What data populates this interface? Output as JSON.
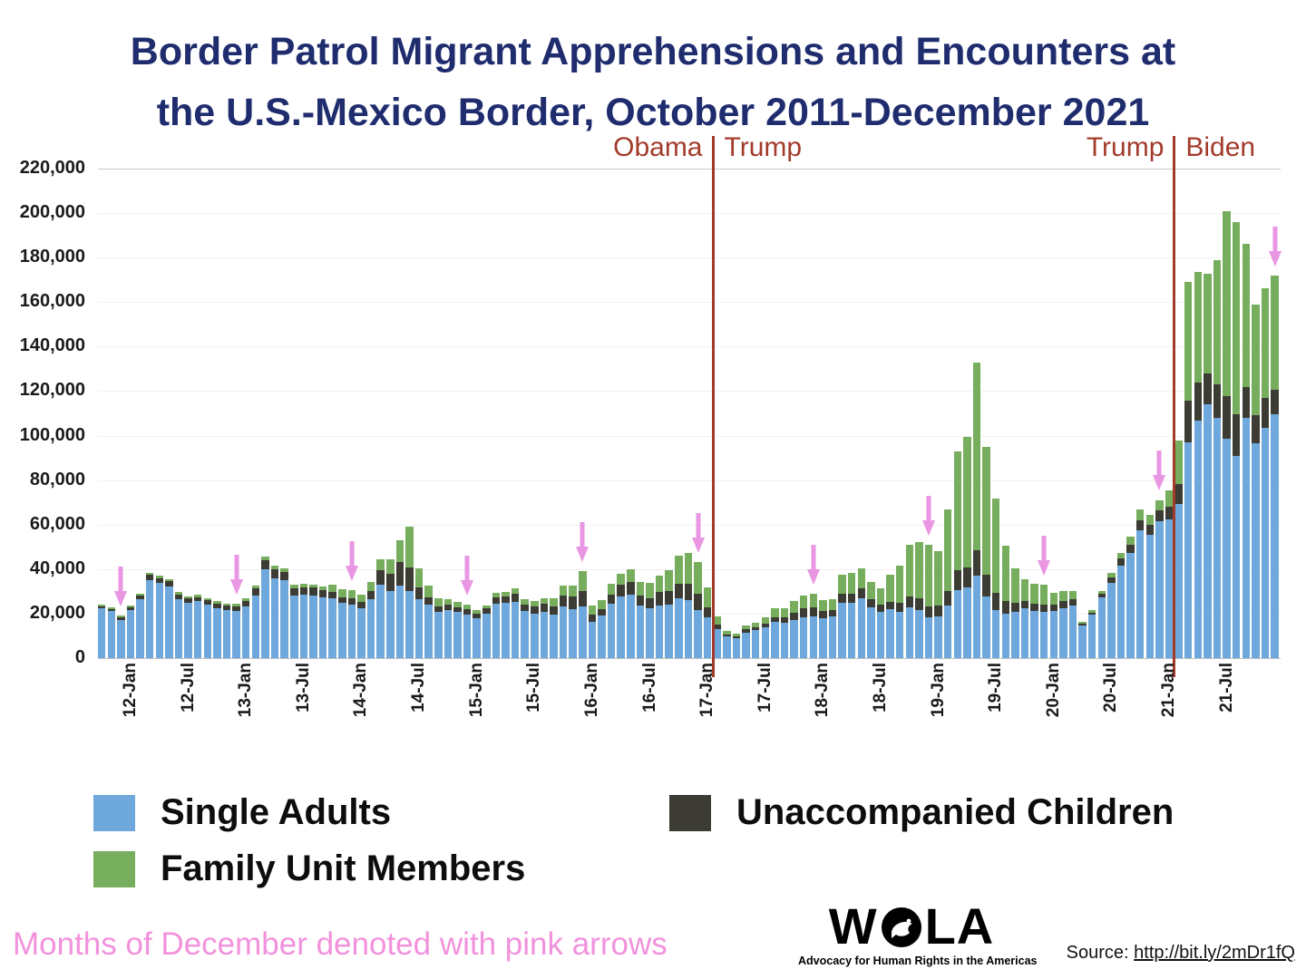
{
  "title": {
    "line1": "Border Patrol Migrant Apprehensions and Encounters at",
    "line2": "the U.S.-Mexico Border, October 2011-December 2021"
  },
  "colors": {
    "title": "#1f2c6e",
    "single": "#6fa8dc",
    "uac": "#3c3c34",
    "family": "#76ae5e",
    "transition": "#a23b2a",
    "arrow": "#e78be0",
    "pink_note": "#f291dc"
  },
  "chart_data": {
    "type": "bar",
    "stacked": true,
    "title": "Border Patrol Migrant Apprehensions and Encounters at the U.S.-Mexico Border, October 2011-December 2021",
    "xlabel": "",
    "ylabel": "",
    "ylim": [
      0,
      220000
    ],
    "ytick_step": 20000,
    "ytick_labels": [
      "220,000",
      "200,000",
      "180,000",
      "160,000",
      "140,000",
      "120,000",
      "100,000",
      "80,000",
      "60,000",
      "40,000",
      "20,000",
      "0"
    ],
    "grid": "minimal",
    "legend_position": "bottom",
    "months": [
      "2011-10",
      "2011-11",
      "2011-12",
      "2012-01",
      "2012-02",
      "2012-03",
      "2012-04",
      "2012-05",
      "2012-06",
      "2012-07",
      "2012-08",
      "2012-09",
      "2012-10",
      "2012-11",
      "2012-12",
      "2013-01",
      "2013-02",
      "2013-03",
      "2013-04",
      "2013-05",
      "2013-06",
      "2013-07",
      "2013-08",
      "2013-09",
      "2013-10",
      "2013-11",
      "2013-12",
      "2014-01",
      "2014-02",
      "2014-03",
      "2014-04",
      "2014-05",
      "2014-06",
      "2014-07",
      "2014-08",
      "2014-09",
      "2014-10",
      "2014-11",
      "2014-12",
      "2015-01",
      "2015-02",
      "2015-03",
      "2015-04",
      "2015-05",
      "2015-06",
      "2015-07",
      "2015-08",
      "2015-09",
      "2015-10",
      "2015-11",
      "2015-12",
      "2016-01",
      "2016-02",
      "2016-03",
      "2016-04",
      "2016-05",
      "2016-06",
      "2016-07",
      "2016-08",
      "2016-09",
      "2016-10",
      "2016-11",
      "2016-12",
      "2017-01",
      "2017-02",
      "2017-03",
      "2017-04",
      "2017-05",
      "2017-06",
      "2017-07",
      "2017-08",
      "2017-09",
      "2017-10",
      "2017-11",
      "2017-12",
      "2018-01",
      "2018-02",
      "2018-03",
      "2018-04",
      "2018-05",
      "2018-06",
      "2018-07",
      "2018-08",
      "2018-09",
      "2018-10",
      "2018-11",
      "2018-12",
      "2019-01",
      "2019-02",
      "2019-03",
      "2019-04",
      "2019-05",
      "2019-06",
      "2019-07",
      "2019-08",
      "2019-09",
      "2019-10",
      "2019-11",
      "2019-12",
      "2020-01",
      "2020-02",
      "2020-03",
      "2020-04",
      "2020-05",
      "2020-06",
      "2020-07",
      "2020-08",
      "2020-09",
      "2020-10",
      "2020-11",
      "2020-12",
      "2021-01",
      "2021-02",
      "2021-03",
      "2021-04",
      "2021-05",
      "2021-06",
      "2021-07",
      "2021-08",
      "2021-09",
      "2021-10",
      "2021-11",
      "2021-12"
    ],
    "series": [
      {
        "name": "Single Adults",
        "color": "#6fa8dc",
        "values": [
          22300,
          21200,
          17300,
          21600,
          26600,
          35200,
          33700,
          32200,
          26500,
          25000,
          25500,
          24200,
          22500,
          21500,
          21100,
          23200,
          28100,
          40000,
          36000,
          35000,
          28000,
          28500,
          28300,
          27200,
          26900,
          24800,
          24000,
          22400,
          26300,
          33000,
          30100,
          32400,
          30100,
          26400,
          24100,
          20900,
          21700,
          20800,
          19700,
          18000,
          20000,
          24600,
          24800,
          25400,
          21100,
          19900,
          20600,
          19600,
          23100,
          22200,
          23400,
          16400,
          19100,
          24300,
          27900,
          28600,
          23600,
          22300,
          23800,
          24000,
          26800,
          26100,
          21800,
          18400,
          13000,
          9600,
          8900,
          11500,
          12500,
          13700,
          16200,
          15800,
          17300,
          18500,
          18700,
          17900,
          18600,
          24900,
          24700,
          26900,
          22700,
          20900,
          21900,
          20600,
          22900,
          21500,
          18500,
          18600,
          23500,
          30600,
          31700,
          36900,
          27800,
          21800,
          19900,
          20800,
          22600,
          21200,
          20800,
          21300,
          22500,
          23700,
          14800,
          19500,
          27500,
          33900,
          41700,
          47300,
          57400,
          55300,
          61500,
          62300,
          69100,
          96900,
          106900,
          114100,
          107800,
          98800,
          90700,
          107900,
          96400,
          103300,
          109700
        ]
      },
      {
        "name": "Unaccompanied Children",
        "color": "#3c3c34",
        "values": [
          1000,
          1000,
          900,
          1100,
          1500,
          2200,
          2300,
          2300,
          2100,
          1900,
          2000,
          1900,
          2100,
          2200,
          2200,
          2500,
          3100,
          4200,
          4000,
          3900,
          3500,
          3300,
          3300,
          3300,
          2700,
          2600,
          2800,
          2900,
          4000,
          6400,
          7700,
          10600,
          10600,
          5500,
          3100,
          2400,
          2500,
          2200,
          2200,
          2100,
          2300,
          2900,
          3000,
          3400,
          3000,
          3200,
          3700,
          3800,
          5000,
          5600,
          6800,
          3100,
          3100,
          4200,
          5200,
          5600,
          4700,
          4700,
          5800,
          6100,
          6700,
          7400,
          7200,
          4400,
          2000,
          1100,
          1000,
          1500,
          1500,
          1900,
          2300,
          2600,
          3100,
          3800,
          4100,
          3200,
          3100,
          4200,
          4300,
          4400,
          3700,
          3100,
          3300,
          4100,
          5000,
          5300,
          4800,
          5100,
          6800,
          9000,
          8900,
          11500,
          9700,
          7600,
          5700,
          3900,
          3100,
          3300,
          3400,
          2700,
          3000,
          2900,
          700,
          1000,
          1600,
          2500,
          3000,
          3700,
          4700,
          4500,
          4900,
          5700,
          9300,
          18700,
          17100,
          14000,
          15200,
          19000,
          18800,
          14100,
          12700,
          13700,
          11100
        ]
      },
      {
        "name": "Family Unit Members",
        "color": "#76ae5e",
        "values": [
          800,
          800,
          800,
          800,
          1000,
          1100,
          1100,
          1100,
          1000,
          900,
          1000,
          1000,
          900,
          900,
          1000,
          1100,
          1300,
          1600,
          1500,
          1500,
          1400,
          1500,
          1500,
          1600,
          3600,
          3700,
          3800,
          3300,
          3900,
          5100,
          6800,
          9900,
          18300,
          8600,
          5300,
          3400,
          2400,
          2200,
          2000,
          1400,
          1500,
          1800,
          1900,
          2400,
          2400,
          2400,
          2800,
          3400,
          4600,
          5000,
          8800,
          4300,
          3900,
          4800,
          5000,
          5800,
          6100,
          6700,
          7400,
          9400,
          12700,
          13700,
          14300,
          8800,
          3800,
          1500,
          1200,
          1600,
          2100,
          2600,
          3800,
          4100,
          5100,
          5900,
          6100,
          4800,
          5000,
          8300,
          9200,
          9000,
          7700,
          7300,
          12300,
          16800,
          23100,
          25200,
          27500,
          24200,
          36500,
          53200,
          58700,
          84500,
          57400,
          42500,
          25100,
          15800,
          9700,
          9000,
          8700,
          5200,
          4600,
          3400,
          700,
          1000,
          1200,
          1900,
          2600,
          3800,
          4600,
          4400,
          4700,
          7300,
          19200,
          53600,
          49700,
          44600,
          55800,
          82900,
          86500,
          64100,
          50000,
          49100,
          51000
        ]
      }
    ],
    "xticks": [
      {
        "index": 3,
        "label": "12-Jan"
      },
      {
        "index": 9,
        "label": "12-Jul"
      },
      {
        "index": 15,
        "label": "13-Jan"
      },
      {
        "index": 21,
        "label": "13-Jul"
      },
      {
        "index": 27,
        "label": "14-Jan"
      },
      {
        "index": 33,
        "label": "14-Jul"
      },
      {
        "index": 39,
        "label": "15-Jan"
      },
      {
        "index": 45,
        "label": "15-Jul"
      },
      {
        "index": 51,
        "label": "16-Jan"
      },
      {
        "index": 57,
        "label": "16-Jul"
      },
      {
        "index": 63,
        "label": "17-Jan"
      },
      {
        "index": 69,
        "label": "17-Jul"
      },
      {
        "index": 75,
        "label": "18-Jan"
      },
      {
        "index": 81,
        "label": "18-Jul"
      },
      {
        "index": 87,
        "label": "19-Jan"
      },
      {
        "index": 93,
        "label": "19-Jul"
      },
      {
        "index": 99,
        "label": "20-Jan"
      },
      {
        "index": 105,
        "label": "20-Jul"
      },
      {
        "index": 111,
        "label": "21-Jan"
      },
      {
        "index": 117,
        "label": "21-Jul"
      }
    ],
    "december_arrow_indices": [
      2,
      14,
      26,
      38,
      50,
      62,
      74,
      86,
      98,
      110,
      122
    ],
    "transitions": [
      {
        "left_label": "Obama",
        "right_label": "Trump",
        "boundary_index": 64
      },
      {
        "left_label": "Trump",
        "right_label": "Biden",
        "boundary_index": 112
      }
    ]
  },
  "legend": {
    "items": [
      {
        "label": "Single Adults"
      },
      {
        "label": "Family Unit Members"
      },
      {
        "label": "Unaccompanied Children"
      }
    ]
  },
  "footer": {
    "note": "Months of December denoted with pink arrows"
  },
  "logo": {
    "name": "WOLA",
    "left": "W",
    "right": "LA",
    "tagline": "Advocacy for Human Rights in the Americas"
  },
  "source": {
    "prefix": "Source: ",
    "url": "http://bit.ly/2mDr1fQ"
  }
}
